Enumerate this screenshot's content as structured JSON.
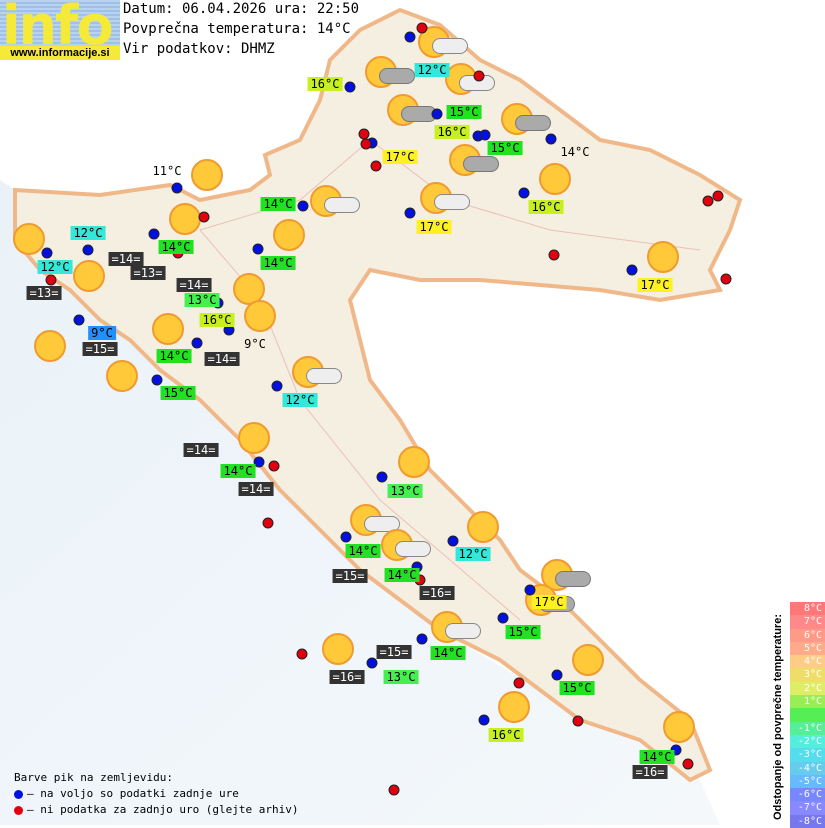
{
  "logo": {
    "text": "info",
    "url": "www.informacije.si"
  },
  "header": {
    "date_line": "Datum: 06.04.2026 ura: 22:50",
    "avg_temp_line": "Povprečna temperatura: 14°C",
    "source_line": "Vir podatkov: DHMZ"
  },
  "colors": {
    "cyan": "#33e8d8",
    "green": "#22e022",
    "light_green": "#44f050",
    "yellow_green": "#c8f020",
    "yellow": "#fff020",
    "blue": "#2090ff",
    "sea": "#333333"
  },
  "temperatures": [
    "16°C",
    "12°C",
    "15°C",
    "16°C",
    "15°C",
    "17°C",
    "14°C",
    "11°C",
    "14°C",
    "16°C",
    "17°C",
    "12°C",
    "14°C",
    "14°C",
    "12°C",
    "13°C",
    "17°C",
    "16°C",
    "9°C",
    "9°C",
    "14°C",
    "15°C",
    "12°C",
    "14°C",
    "13°C",
    "14°C",
    "12°C",
    "14°C",
    "17°C",
    "15°C",
    "14°C",
    "13°C",
    "15°C",
    "16°C",
    "14°C"
  ],
  "sea_temperatures": [
    "=14=",
    "=13=",
    "=14=",
    "=13=",
    "=15=",
    "=14=",
    "=14=",
    "=14=",
    "=15=",
    "=16=",
    "=15=",
    "=16=",
    "=16="
  ],
  "weather_icons": {
    "sun": "sun-icon",
    "partly_cloudy": "partly-cloudy-icon",
    "cloudy": "cloudy-icon"
  },
  "legend": {
    "title": "Barve pik na zemljevidu:",
    "blue": "– na voljo so podatki zadnje ure",
    "red": "– ni podatka za zadnjo uro (glejte arhiv)"
  },
  "scale": {
    "title": "Odstopanje od povprečne temperature:",
    "steps": [
      "8°C",
      "7°C",
      "6°C",
      "5°C",
      "4°C",
      "3°C",
      "2°C",
      "1°C",
      "",
      "-1°C",
      "-2°C",
      "-3°C",
      "-4°C",
      "-5°C",
      "-6°C",
      "-7°C",
      "-8°C"
    ],
    "colors": [
      "#f77",
      "#f88",
      "#f98",
      "#fa8",
      "#fc8",
      "#ed6",
      "#de6",
      "#9e5",
      "#5e5",
      "#5e9",
      "#5ed",
      "#5de",
      "#6ce",
      "#6bf",
      "#78f",
      "#88f",
      "#77e"
    ]
  }
}
